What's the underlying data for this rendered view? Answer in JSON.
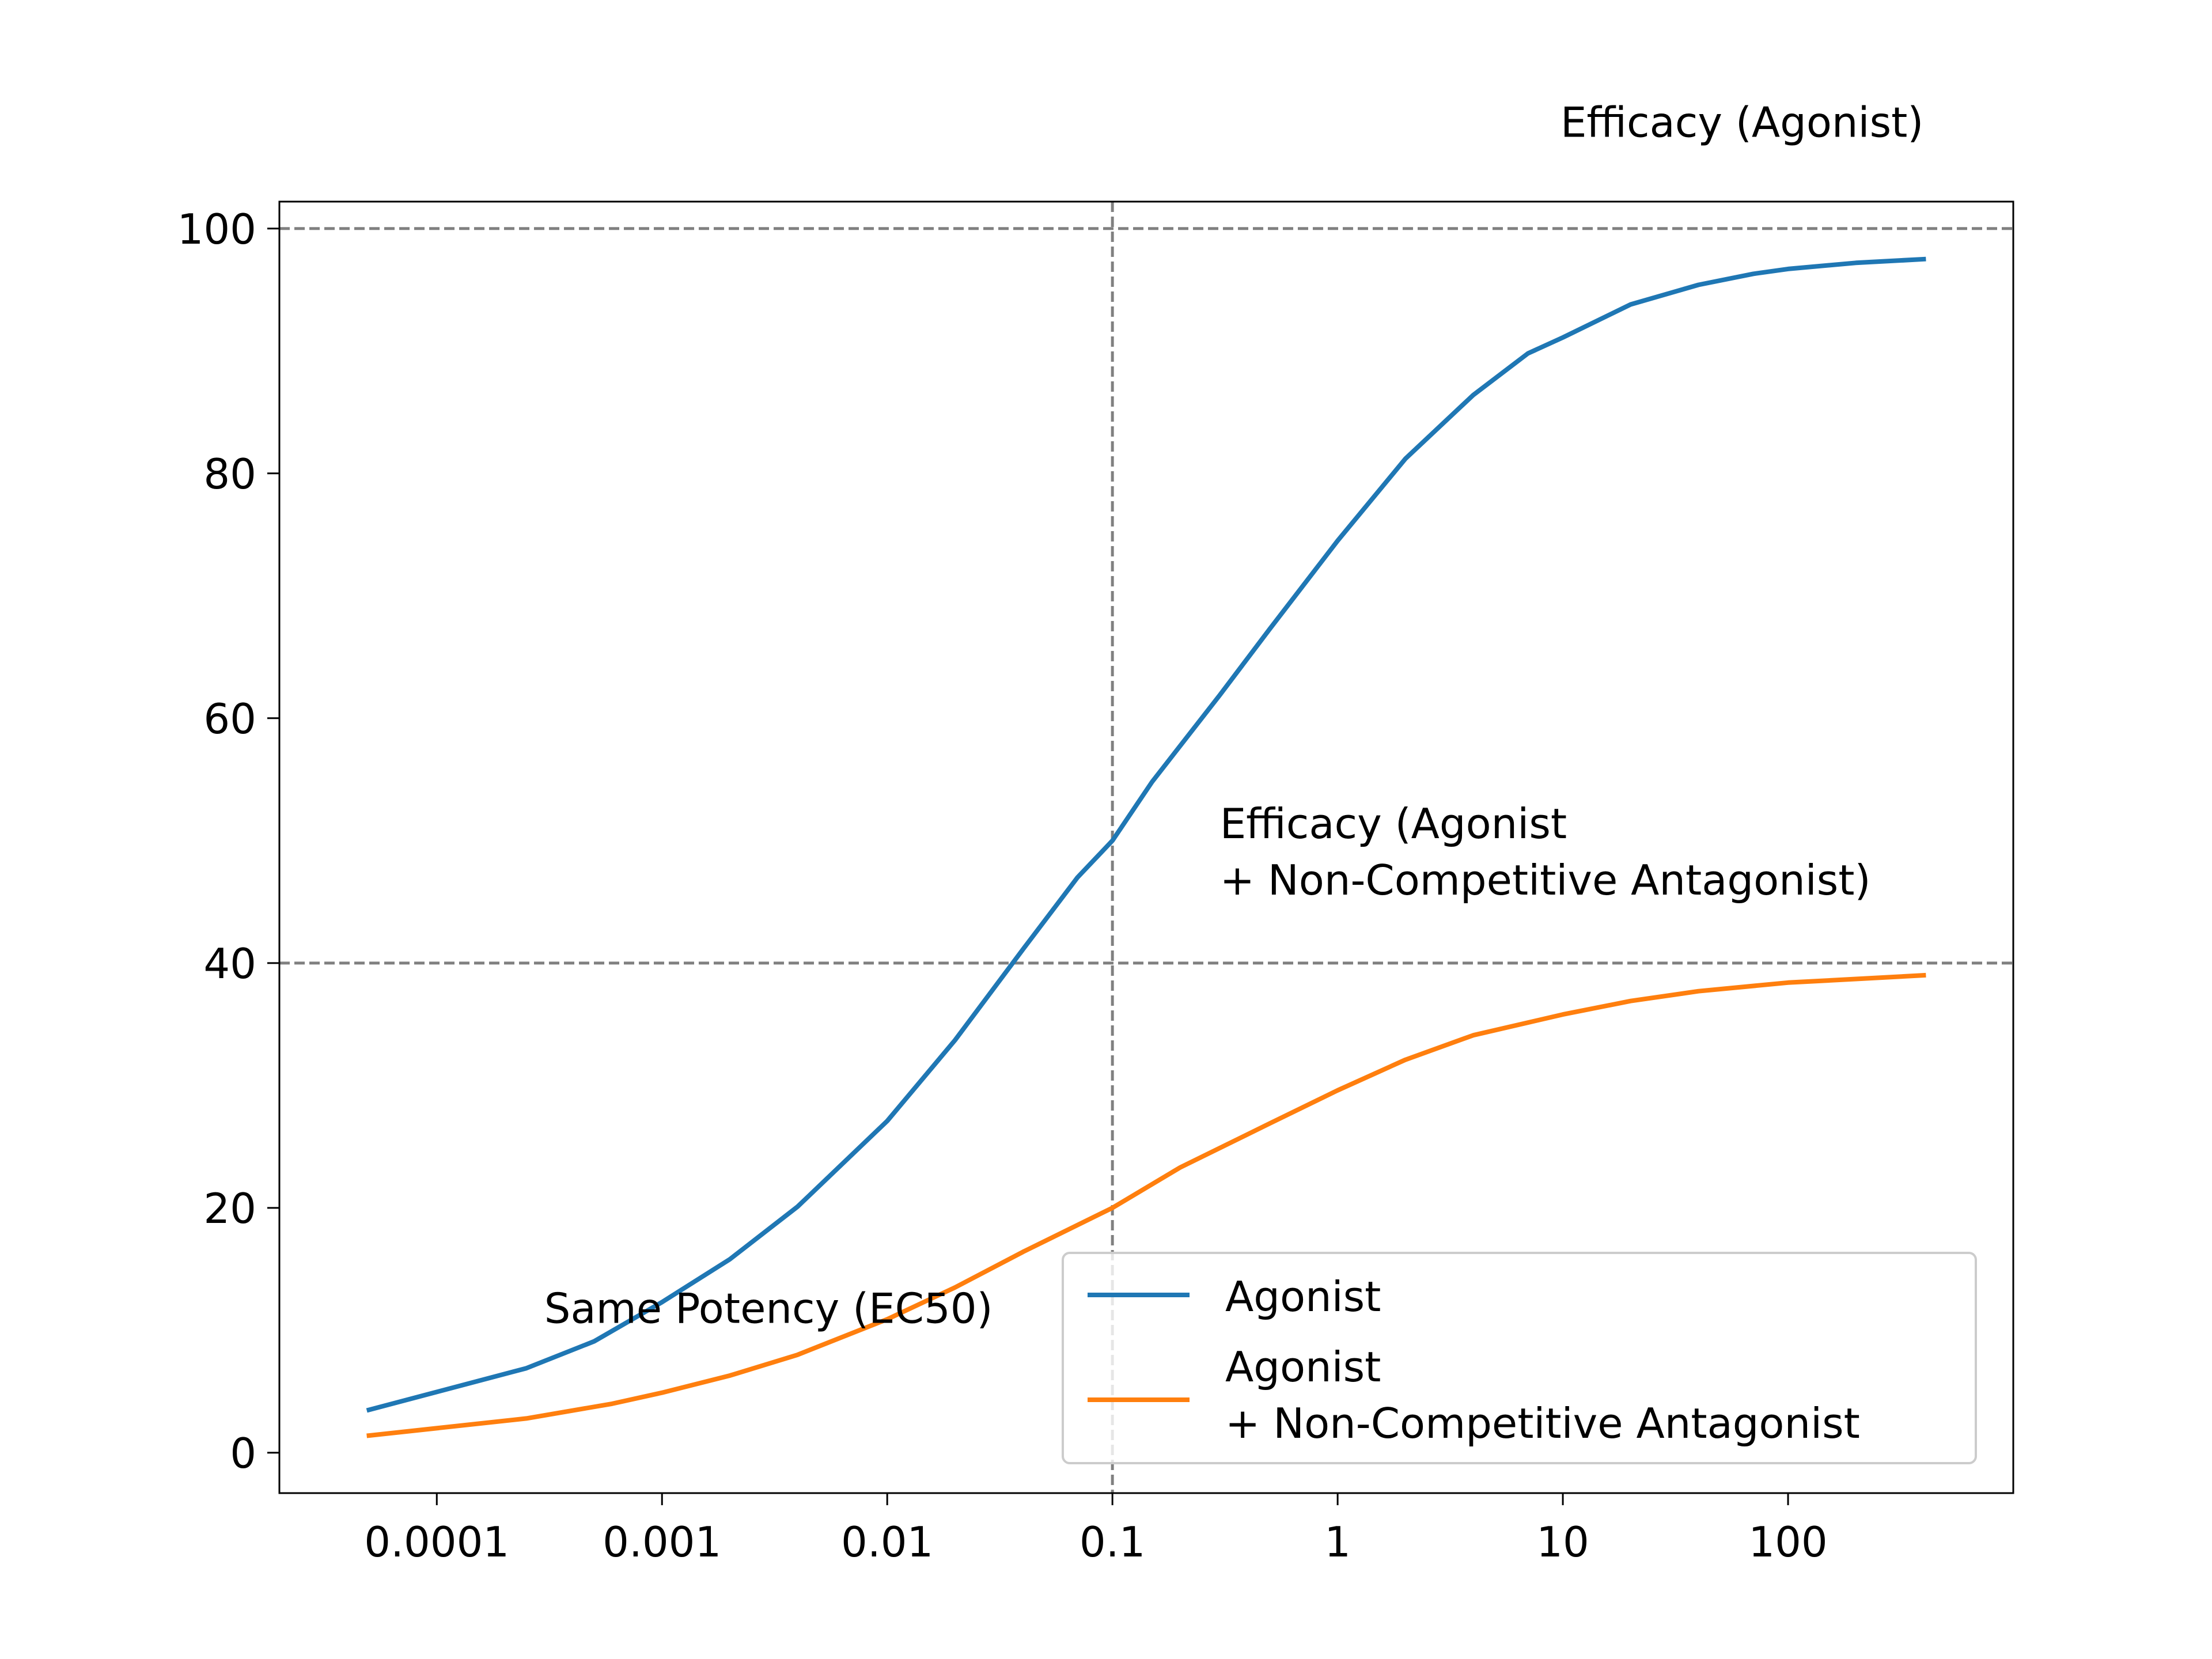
{
  "chart_data": {
    "type": "line",
    "xscale": "log",
    "xlim": [
      2e-05,
      1000
    ],
    "ylim": [
      -3.3,
      102.2
    ],
    "xticks": [
      {
        "value": 0.0001,
        "label": "0.0001"
      },
      {
        "value": 0.001,
        "label": "0.001"
      },
      {
        "value": 0.01,
        "label": "0.01"
      },
      {
        "value": 0.1,
        "label": "0.1"
      },
      {
        "value": 1,
        "label": "1"
      },
      {
        "value": 10,
        "label": "10"
      },
      {
        "value": 100,
        "label": "100"
      }
    ],
    "yticks": [
      {
        "value": 0,
        "label": "0"
      },
      {
        "value": 20,
        "label": "20"
      },
      {
        "value": 40,
        "label": "40"
      },
      {
        "value": 60,
        "label": "60"
      },
      {
        "value": 80,
        "label": "80"
      },
      {
        "value": 100,
        "label": "100"
      }
    ],
    "x": [
      5e-05,
      0.00025,
      0.00063,
      0.00126,
      0.002,
      0.00316,
      0.005,
      0.00794,
      0.0126,
      0.02,
      0.0316,
      0.05,
      0.0794,
      0.1,
      0.126,
      0.2,
      0.316,
      0.5,
      0.794,
      1.26,
      2,
      3.16,
      5,
      7.94,
      12.6,
      20,
      31.6,
      50,
      79.4,
      126,
      200,
      400
    ],
    "series": [
      {
        "name": "Agonist",
        "color": "#1f77b4",
        "values": [
          3.5,
          6.9,
          10.0,
          13.2,
          15.7,
          18.8,
          22.5,
          26.7,
          31.4,
          36.6,
          42.0,
          47.5,
          53.3,
          50.0,
          55.5,
          61.2,
          66.8,
          72.0,
          76.8,
          81.0,
          84.7,
          87.8,
          90.4,
          92.4,
          94.0,
          95.2,
          96.1,
          96.6,
          97.0,
          97.2,
          97.3,
          97.5
        ],
        "curve_x": [
          5e-05,
          0.00025,
          0.0005,
          0.001,
          0.002,
          0.004,
          0.01,
          0.02,
          0.04,
          0.07,
          0.1,
          0.15,
          0.3,
          0.5,
          1,
          2,
          4,
          7,
          10,
          20,
          40,
          70,
          100,
          200,
          400
        ],
        "curve_y": [
          3.5,
          6.9,
          9.1,
          12.3,
          15.8,
          20.1,
          27.1,
          33.7,
          41.1,
          47.0,
          50.0,
          54.8,
          61.9,
          67.3,
          74.5,
          81.2,
          86.4,
          89.8,
          91.1,
          93.8,
          95.4,
          96.3,
          96.7,
          97.2,
          97.5
        ]
      },
      {
        "name": "Agonist\n+ Non-Competitive Antagonist",
        "color": "#ff7f0e",
        "curve_x": [
          5e-05,
          0.00025,
          0.0006,
          0.001,
          0.002,
          0.004,
          0.01,
          0.02,
          0.04,
          0.1,
          0.2,
          0.5,
          1,
          2,
          4,
          10,
          20,
          40,
          100,
          200,
          400
        ],
        "curve_y": [
          1.4,
          2.8,
          4.0,
          4.9,
          6.3,
          8.0,
          10.9,
          13.5,
          16.4,
          20.0,
          23.3,
          26.9,
          29.6,
          32.1,
          34.1,
          35.8,
          36.9,
          37.7,
          38.4,
          38.7,
          39.0
        ]
      }
    ],
    "reference_lines": [
      {
        "orientation": "horizontal",
        "value": 100
      },
      {
        "orientation": "horizontal",
        "value": 40
      },
      {
        "orientation": "vertical",
        "value": 0.1
      }
    ],
    "annotations": [
      {
        "name": "efficacy-agonist",
        "text": "Efficacy (Agonist)",
        "x": 400,
        "y": 107.5,
        "anchor": "end"
      },
      {
        "name": "efficacy-antagonist-line1",
        "text": "Efficacy (Agonist",
        "x": 0.3,
        "y": 50.2,
        "anchor": "start"
      },
      {
        "name": "efficacy-antagonist-line2",
        "text": "+ Non-Competitive Antagonist)",
        "x": 0.3,
        "y": 45.6,
        "anchor": "start"
      },
      {
        "name": "same-potency",
        "text": "Same Potency (EC50)",
        "x": 0.0003,
        "y": 10.6,
        "anchor": "start"
      }
    ],
    "legend": {
      "position": "lower-right",
      "entries": [
        {
          "lines": [
            "Agonist"
          ],
          "color": "#1f77b4"
        },
        {
          "lines": [
            "Agonist",
            "+ Non-Competitive Antagonist"
          ],
          "color": "#ff7f0e"
        }
      ]
    },
    "grid": false
  }
}
